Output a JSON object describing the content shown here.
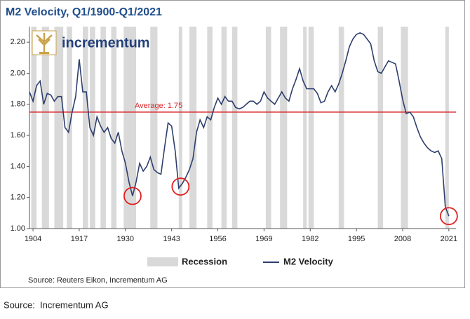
{
  "chart_data": {
    "type": "line",
    "title": "M2 Velocity, Q1/1900-Q1/2021",
    "logo_text": "incrementum",
    "xlim": [
      1903,
      2023
    ],
    "ylim": [
      1.0,
      2.3
    ],
    "xticks": [
      1904,
      1917,
      1930,
      1943,
      1956,
      1969,
      1982,
      1995,
      2008,
      2021
    ],
    "yticks": [
      {
        "value": 1.0,
        "label": "1.00"
      },
      {
        "value": 1.2,
        "label": "1.20"
      },
      {
        "value": 1.4,
        "label": "1.40"
      },
      {
        "value": 1.6,
        "label": "1.60"
      },
      {
        "value": 1.8,
        "label": "1.80"
      },
      {
        "value": 2.0,
        "label": "2.00"
      },
      {
        "value": 2.2,
        "label": "2.20"
      }
    ],
    "x": [
      1903,
      1904,
      1905,
      1906,
      1907,
      1908,
      1909,
      1910,
      1911,
      1912,
      1913,
      1914,
      1915,
      1916,
      1917,
      1918,
      1919,
      1920,
      1921,
      1922,
      1923,
      1924,
      1925,
      1926,
      1927,
      1928,
      1929,
      1930,
      1931,
      1932,
      1933,
      1934,
      1935,
      1936,
      1937,
      1938,
      1939,
      1940,
      1941,
      1942,
      1943,
      1944,
      1945,
      1946,
      1947,
      1948,
      1949,
      1950,
      1951,
      1952,
      1953,
      1954,
      1955,
      1956,
      1957,
      1958,
      1959,
      1960,
      1961,
      1962,
      1963,
      1964,
      1965,
      1966,
      1967,
      1968,
      1969,
      1970,
      1971,
      1972,
      1973,
      1974,
      1975,
      1976,
      1977,
      1978,
      1979,
      1980,
      1981,
      1982,
      1983,
      1984,
      1985,
      1986,
      1987,
      1988,
      1989,
      1990,
      1991,
      1992,
      1993,
      1994,
      1995,
      1996,
      1997,
      1998,
      1999,
      2000,
      2001,
      2002,
      2003,
      2004,
      2005,
      2006,
      2007,
      2008,
      2009,
      2010,
      2011,
      2012,
      2013,
      2014,
      2015,
      2016,
      2017,
      2018,
      2019,
      2020,
      2021
    ],
    "series": [
      {
        "name": "M2 Velocity",
        "color": "#2e3f6e",
        "values": [
          1.88,
          1.82,
          1.92,
          1.95,
          1.8,
          1.87,
          1.86,
          1.82,
          1.85,
          1.85,
          1.65,
          1.62,
          1.75,
          1.85,
          2.09,
          1.88,
          1.88,
          1.65,
          1.6,
          1.72,
          1.66,
          1.62,
          1.65,
          1.58,
          1.55,
          1.62,
          1.5,
          1.42,
          1.3,
          1.21,
          1.3,
          1.42,
          1.37,
          1.4,
          1.46,
          1.38,
          1.36,
          1.35,
          1.52,
          1.68,
          1.66,
          1.5,
          1.26,
          1.29,
          1.33,
          1.38,
          1.45,
          1.62,
          1.7,
          1.65,
          1.72,
          1.7,
          1.78,
          1.84,
          1.8,
          1.85,
          1.82,
          1.82,
          1.78,
          1.77,
          1.78,
          1.8,
          1.82,
          1.82,
          1.8,
          1.82,
          1.88,
          1.84,
          1.82,
          1.8,
          1.84,
          1.88,
          1.84,
          1.82,
          1.9,
          1.96,
          2.03,
          1.95,
          1.9,
          1.9,
          1.9,
          1.87,
          1.81,
          1.82,
          1.88,
          1.92,
          1.88,
          1.93,
          2.0,
          2.08,
          2.17,
          2.22,
          2.25,
          2.26,
          2.25,
          2.22,
          2.19,
          2.08,
          2.01,
          2.0,
          2.04,
          2.08,
          2.07,
          2.06,
          1.95,
          1.83,
          1.74,
          1.75,
          1.72,
          1.65,
          1.59,
          1.55,
          1.52,
          1.5,
          1.49,
          1.5,
          1.45,
          1.14,
          1.08
        ]
      }
    ],
    "recession_name": "Recession",
    "recession_color": "#d9d9d9",
    "recessions": [
      [
        1903.5,
        1905
      ],
      [
        1906.5,
        1908.5
      ],
      [
        1910,
        1912.5
      ],
      [
        1913.5,
        1915
      ],
      [
        1918,
        1919.5
      ],
      [
        1920,
        1921.5
      ],
      [
        1923,
        1924.5
      ],
      [
        1926,
        1927.5
      ],
      [
        1929.5,
        1933
      ],
      [
        1937,
        1939
      ],
      [
        1945,
        1946
      ],
      [
        1948,
        1950
      ],
      [
        1953,
        1954.5
      ],
      [
        1957,
        1958.5
      ],
      [
        1960,
        1961.5
      ],
      [
        1969.5,
        1971
      ],
      [
        1973.5,
        1975.5
      ],
      [
        1980,
        1981
      ],
      [
        1981.5,
        1983
      ],
      [
        1990,
        1991.5
      ],
      [
        2001,
        2002.5
      ],
      [
        2007.5,
        2009.5
      ],
      [
        2020,
        2021
      ]
    ],
    "average": 1.75,
    "average_label": "Average: 1.75",
    "average_color": "#d9262c",
    "highlights": [
      {
        "x": 1932,
        "y": 1.21
      },
      {
        "x": 1945.5,
        "y": 1.27
      },
      {
        "x": 2021,
        "y": 1.08
      }
    ],
    "grid": false,
    "source_inner": "Source: Reuters Eikon, Incrementum AG",
    "source_outer": "Source:  Incrementum AG"
  }
}
